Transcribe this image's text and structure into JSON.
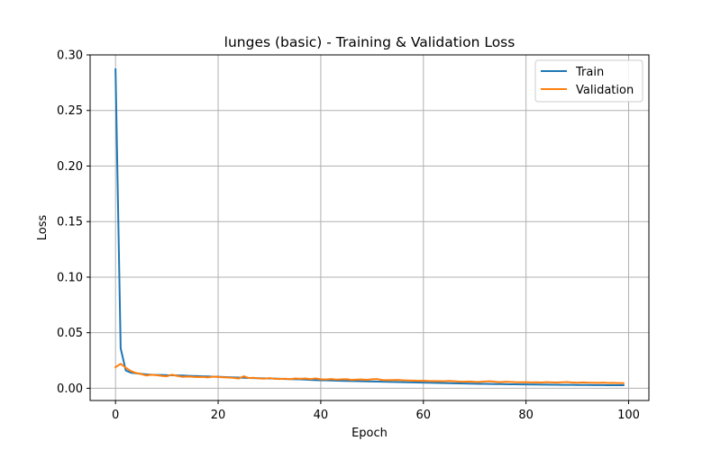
{
  "chart_data": {
    "type": "line",
    "title": "lunges (basic) - Training & Validation Loss",
    "xlabel": "Epoch",
    "ylabel": "Loss",
    "xlim": [
      -4.95,
      103.95
    ],
    "ylim": [
      -0.011,
      0.3
    ],
    "xticks": [
      0,
      20,
      40,
      60,
      80,
      100
    ],
    "xtick_labels": [
      "0",
      "20",
      "40",
      "60",
      "80",
      "100"
    ],
    "yticks": [
      0.0,
      0.05,
      0.1,
      0.15,
      0.2,
      0.25,
      0.3
    ],
    "ytick_labels": [
      "0.00",
      "0.05",
      "0.10",
      "0.15",
      "0.20",
      "0.25",
      "0.30"
    ],
    "grid": true,
    "legend_position": "top-right",
    "x_start": 0,
    "series": [
      {
        "name": "Train",
        "color": "#1f77b4",
        "values": [
          0.287,
          0.036,
          0.016,
          0.014,
          0.0135,
          0.013,
          0.0125,
          0.0122,
          0.012,
          0.012,
          0.0118,
          0.0117,
          0.0116,
          0.0115,
          0.0113,
          0.0111,
          0.011,
          0.0108,
          0.0107,
          0.0105,
          0.0104,
          0.0102,
          0.01,
          0.0098,
          0.0096,
          0.0094,
          0.0092,
          0.0091,
          0.009,
          0.0089,
          0.0088,
          0.0087,
          0.0085,
          0.0083,
          0.0082,
          0.0081,
          0.008,
          0.0078,
          0.0075,
          0.0073,
          0.0072,
          0.0071,
          0.007,
          0.0068,
          0.0067,
          0.0066,
          0.0065,
          0.0064,
          0.0063,
          0.0062,
          0.0061,
          0.006,
          0.0059,
          0.0058,
          0.0057,
          0.0056,
          0.0055,
          0.0054,
          0.0053,
          0.0052,
          0.0051,
          0.005,
          0.0049,
          0.0048,
          0.0047,
          0.0046,
          0.0045,
          0.0044,
          0.0043,
          0.0042,
          0.0041,
          0.004,
          0.004,
          0.0039,
          0.0038,
          0.0038,
          0.0037,
          0.0036,
          0.0036,
          0.0035,
          0.0035,
          0.0034,
          0.0034,
          0.0033,
          0.0033,
          0.0032,
          0.0032,
          0.0031,
          0.0031,
          0.0031,
          0.003,
          0.003,
          0.003,
          0.0029,
          0.0029,
          0.0029,
          0.0028,
          0.0028,
          0.0028,
          0.0028
        ]
      },
      {
        "name": "Validation",
        "color": "#ff7f0e",
        "values": [
          0.019,
          0.022,
          0.0185,
          0.0155,
          0.0138,
          0.0128,
          0.0115,
          0.0122,
          0.0118,
          0.0112,
          0.0108,
          0.0122,
          0.0112,
          0.0103,
          0.0106,
          0.0104,
          0.0101,
          0.0103,
          0.0098,
          0.0105,
          0.0102,
          0.0099,
          0.0097,
          0.0093,
          0.0088,
          0.0108,
          0.0092,
          0.0094,
          0.0088,
          0.0086,
          0.0092,
          0.0085,
          0.0083,
          0.0086,
          0.0081,
          0.0088,
          0.0085,
          0.0088,
          0.0082,
          0.0089,
          0.0081,
          0.0079,
          0.0083,
          0.0078,
          0.008,
          0.0082,
          0.0075,
          0.0078,
          0.0079,
          0.0076,
          0.0081,
          0.0083,
          0.0074,
          0.0073,
          0.0074,
          0.0075,
          0.0072,
          0.007,
          0.0069,
          0.0067,
          0.0068,
          0.0066,
          0.0065,
          0.0064,
          0.0063,
          0.0066,
          0.0063,
          0.006,
          0.0059,
          0.0061,
          0.0058,
          0.0057,
          0.0061,
          0.0063,
          0.0058,
          0.0055,
          0.0059,
          0.0057,
          0.0055,
          0.0054,
          0.0055,
          0.0053,
          0.0054,
          0.0052,
          0.0055,
          0.0053,
          0.0052,
          0.0054,
          0.0056,
          0.0052,
          0.005,
          0.0053,
          0.0051,
          0.005,
          0.0049,
          0.0051,
          0.0048,
          0.0049,
          0.0047,
          0.0046
        ]
      }
    ]
  }
}
